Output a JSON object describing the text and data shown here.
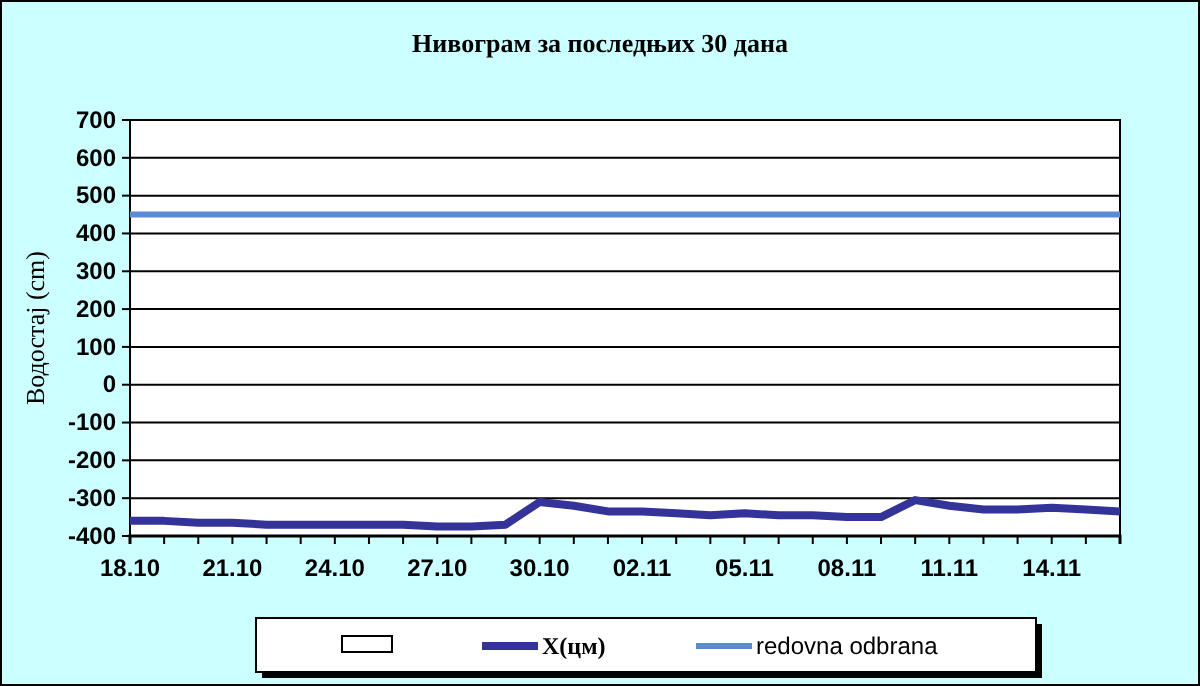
{
  "chart_data": {
    "type": "line",
    "title": "Нивограм за последњих 30 дана",
    "ylabel": "Водостај (cm)",
    "categories": [
      "18.10",
      null,
      null,
      "21.10",
      null,
      null,
      "24.10",
      null,
      null,
      "27.10",
      null,
      null,
      "30.10",
      null,
      null,
      "02.11",
      null,
      null,
      "05.11",
      null,
      null,
      "08.11",
      null,
      null,
      "11.11",
      null,
      null,
      "14.11",
      null,
      null
    ],
    "series": [
      {
        "name": "X(цм)",
        "color": "#333399",
        "values": [
          -360,
          -360,
          -365,
          -365,
          -370,
          -370,
          -370,
          -370,
          -370,
          -375,
          -375,
          -370,
          -310,
          -320,
          -335,
          -335,
          -340,
          -345,
          -340,
          -345,
          -345,
          -350,
          -350,
          -305,
          -320,
          -330,
          -330,
          -325,
          -330,
          -335
        ]
      },
      {
        "name": "redovna odbrana",
        "color": "#5b8bd6",
        "values": [
          450,
          450,
          450,
          450,
          450,
          450,
          450,
          450,
          450,
          450,
          450,
          450,
          450,
          450,
          450,
          450,
          450,
          450,
          450,
          450,
          450,
          450,
          450,
          450,
          450,
          450,
          450,
          450,
          450,
          450
        ]
      }
    ],
    "ylim": [
      -400,
      700
    ],
    "yticks": [
      -400,
      -300,
      -200,
      -100,
      0,
      100,
      200,
      300,
      400,
      500,
      600,
      700
    ],
    "grid": "y",
    "legend": "bottom",
    "marker": "none",
    "line_style": "solid"
  }
}
